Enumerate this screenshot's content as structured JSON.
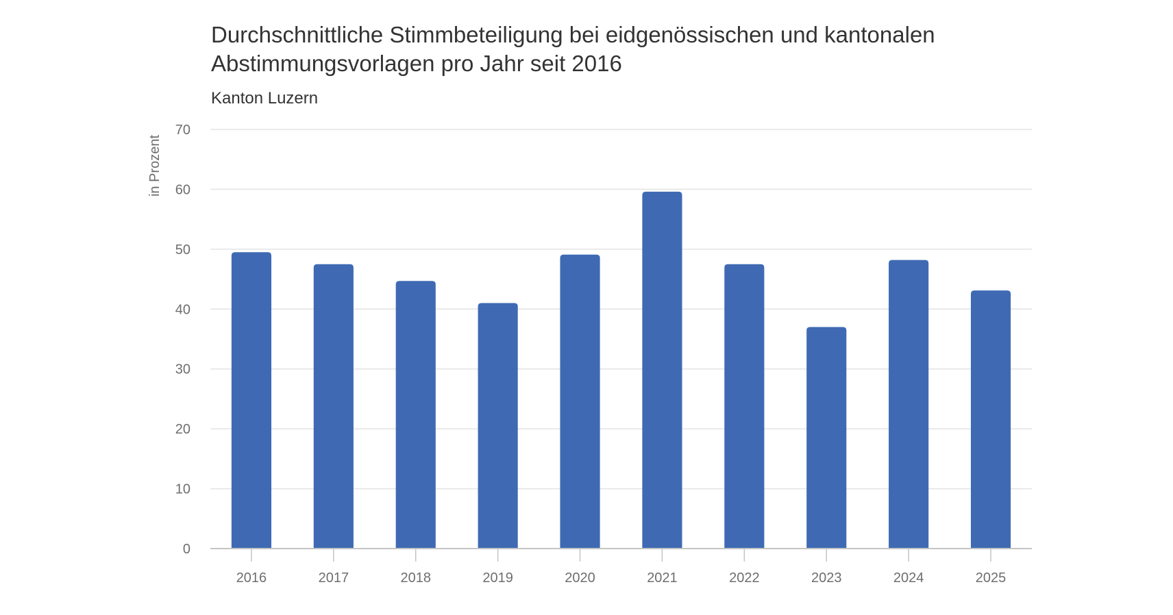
{
  "chart_data": {
    "type": "bar",
    "title": "Durchschnittliche Stimmbeteiligung bei eidgenössischen und kantonalen Abstimmungsvorlagen pro Jahr seit 2016",
    "title_lines": [
      "Durchschnittliche Stimmbeteiligung bei eidgenössischen und kantonalen",
      "Abstimmungsvorlagen pro Jahr seit 2016"
    ],
    "subtitle": "Kanton Luzern",
    "xlabel": "",
    "ylabel": "in Prozent",
    "categories": [
      "2016",
      "2017",
      "2018",
      "2019",
      "2020",
      "2021",
      "2022",
      "2023",
      "2024",
      "2025"
    ],
    "values": [
      49.5,
      47.5,
      44.7,
      41.0,
      49.1,
      59.6,
      47.5,
      37.0,
      48.2,
      43.1
    ],
    "ylim": [
      0,
      70
    ],
    "yticks": [
      "0",
      "10",
      "20",
      "30",
      "40",
      "50",
      "60",
      "70"
    ],
    "grid": true,
    "legend": "none",
    "bar_color": "#3f6ab3",
    "grid_color": "#e3e3e3",
    "axis_color": "#c4c4c4"
  }
}
